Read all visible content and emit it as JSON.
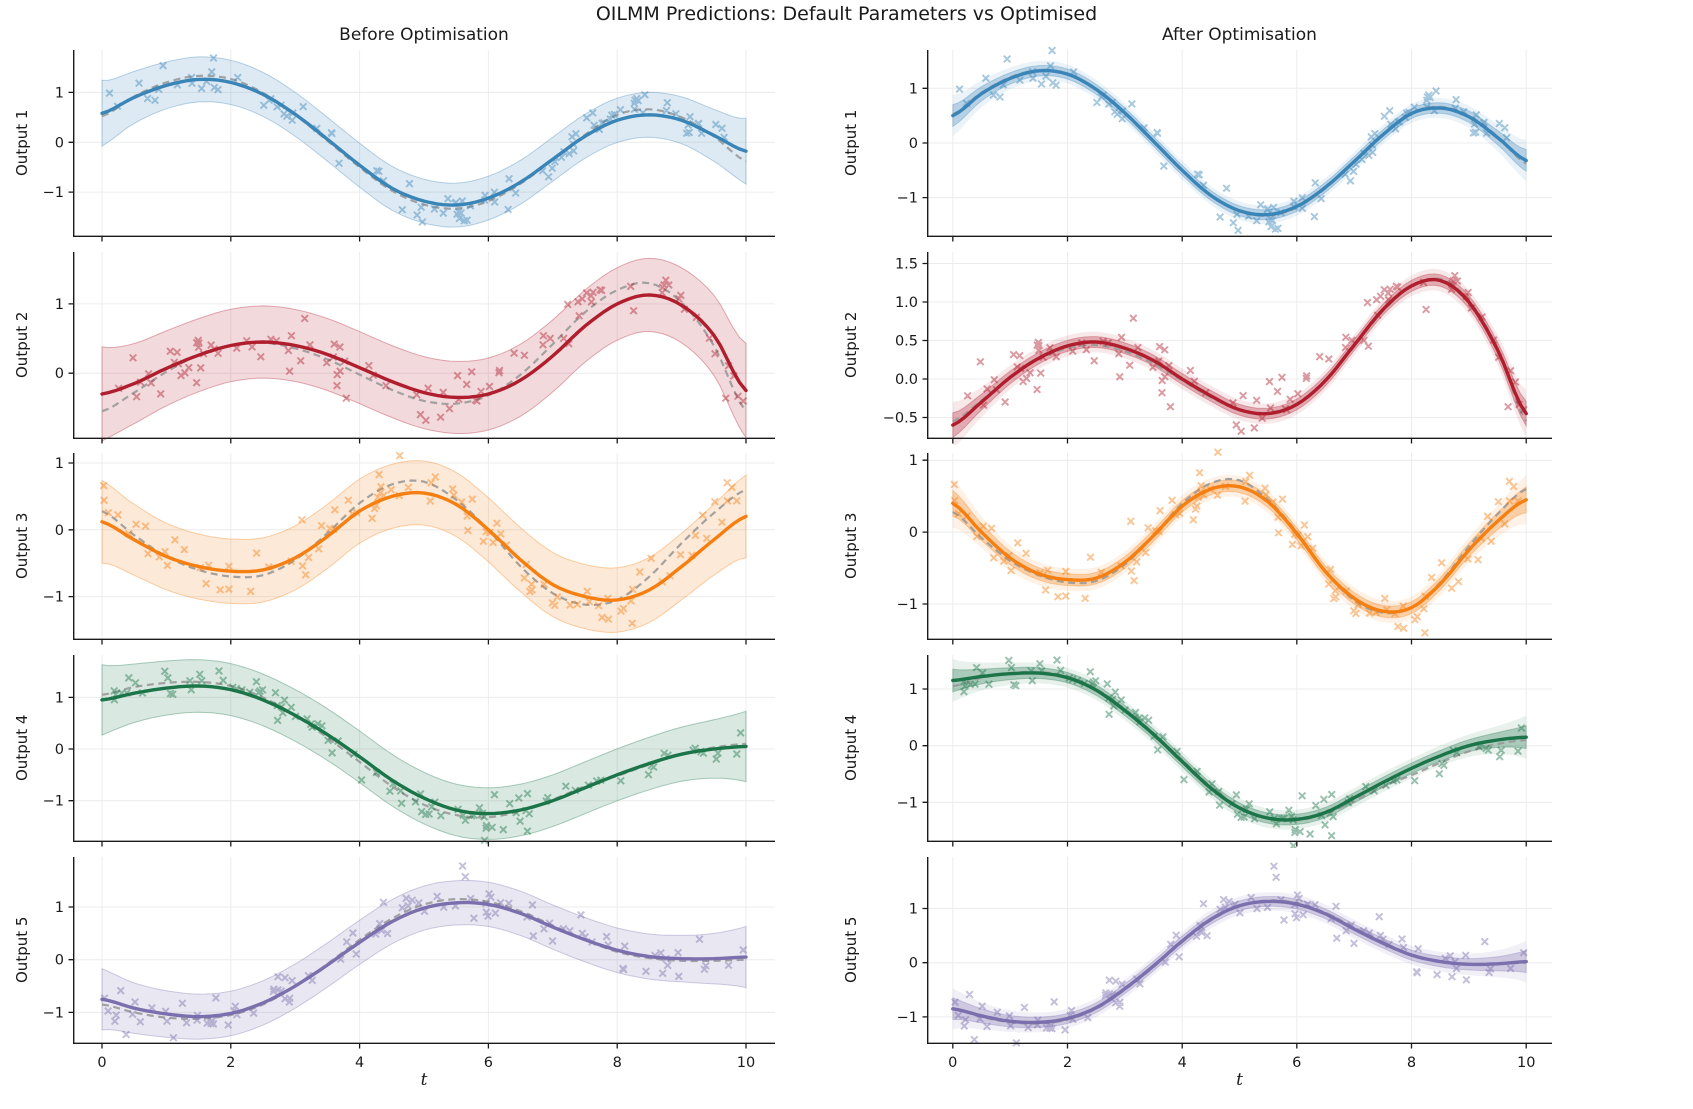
{
  "figure": {
    "title": "OILMM Predictions: Default Parameters vs Optimised",
    "col_titles": [
      "Before Optimisation",
      "After Optimisation"
    ],
    "xlabel": "t"
  },
  "chart_data": {
    "type": "line",
    "title": "OILMM Predictions: Default Parameters vs Optimised",
    "column_titles": [
      "Before Optimisation",
      "After Optimisation"
    ],
    "xlabel": "t",
    "x_ticks": [
      0,
      2,
      4,
      6,
      8,
      10
    ],
    "xlim": [
      -0.45,
      10.45
    ],
    "grid": true,
    "grid_color": "#ececec",
    "spine_color": "#1a1a1a",
    "truth_color": "#999999",
    "truth_style": "dashed",
    "marker": "x",
    "t": [
      0,
      0.5,
      1,
      1.5,
      2,
      2.5,
      3,
      3.5,
      4,
      4.5,
      5,
      5.5,
      6,
      6.5,
      7,
      7.5,
      8,
      8.5,
      9,
      9.5,
      10
    ],
    "rows": [
      {
        "label": "Output 1",
        "color": "#3a85b8",
        "truth": [
          0.52,
          0.92,
          1.2,
          1.33,
          1.27,
          0.99,
          0.55,
          0.03,
          -0.5,
          -0.97,
          -1.25,
          -1.33,
          -1.18,
          -0.83,
          -0.35,
          0.15,
          0.55,
          0.66,
          0.5,
          0.12,
          -0.38
        ],
        "scatter": {
          "seed": 7,
          "n": 100,
          "noise_sd": 0.17
        },
        "extra_points": [],
        "before": {
          "mean": [
            0.58,
            0.9,
            1.14,
            1.26,
            1.2,
            0.96,
            0.56,
            0.06,
            -0.46,
            -0.92,
            -1.18,
            -1.26,
            -1.12,
            -0.8,
            -0.34,
            0.12,
            0.44,
            0.55,
            0.44,
            0.14,
            -0.18
          ],
          "band_mid": 0.44,
          "band_edge": 0.66,
          "ylim": [
            -1.9,
            1.85
          ],
          "yticks": [
            -1,
            0,
            1
          ],
          "ytick_labels": [
            "−1",
            "0",
            "1"
          ]
        },
        "after": {
          "mean": [
            0.5,
            0.9,
            1.18,
            1.32,
            1.26,
            0.98,
            0.55,
            0.03,
            -0.5,
            -0.96,
            -1.24,
            -1.31,
            -1.16,
            -0.81,
            -0.34,
            0.15,
            0.54,
            0.64,
            0.48,
            0.1,
            -0.32
          ],
          "band_mid": 0.09,
          "band_edge": 0.2,
          "ylim": [
            -1.72,
            1.7
          ],
          "yticks": [
            -1,
            0,
            1
          ],
          "ytick_labels": [
            "−1",
            "0",
            "1"
          ]
        }
      },
      {
        "label": "Output 2",
        "color": "#b01e2e",
        "truth": [
          -0.55,
          -0.28,
          0.02,
          0.26,
          0.4,
          0.44,
          0.36,
          0.2,
          -0.02,
          -0.24,
          -0.4,
          -0.44,
          -0.32,
          -0.02,
          0.42,
          0.88,
          1.2,
          1.3,
          1.02,
          0.4,
          -0.55
        ],
        "scatter": {
          "seed": 13,
          "n": 100,
          "noise_sd": 0.2
        },
        "extra_points": [],
        "before": {
          "mean": [
            -0.3,
            -0.15,
            0.07,
            0.26,
            0.4,
            0.45,
            0.4,
            0.27,
            0.08,
            -0.12,
            -0.28,
            -0.35,
            -0.3,
            -0.1,
            0.25,
            0.68,
            1.0,
            1.13,
            0.98,
            0.55,
            -0.25
          ],
          "band_mid": 0.52,
          "band_edge": 0.68,
          "ylim": [
            -0.95,
            1.75
          ],
          "yticks": [
            0,
            1
          ],
          "ytick_labels": [
            "0",
            "1"
          ]
        },
        "after": {
          "mean": [
            -0.6,
            -0.3,
            0.02,
            0.27,
            0.43,
            0.48,
            0.4,
            0.24,
            0.0,
            -0.22,
            -0.4,
            -0.45,
            -0.33,
            -0.02,
            0.44,
            0.9,
            1.21,
            1.28,
            1.0,
            0.38,
            -0.45
          ],
          "band_mid": 0.07,
          "band_edge": 0.16,
          "ylim": [
            -0.78,
            1.65
          ],
          "yticks": [
            -0.5,
            0,
            0.5,
            1,
            1.5
          ],
          "ytick_labels": [
            "−0.5",
            "0.0",
            "0.5",
            "1.0",
            "1.5"
          ]
        }
      },
      {
        "label": "Output 3",
        "color": "#f57f11",
        "truth": [
          0.28,
          -0.08,
          -0.4,
          -0.6,
          -0.7,
          -0.68,
          -0.45,
          -0.05,
          0.4,
          0.68,
          0.72,
          0.45,
          0.0,
          -0.55,
          -0.95,
          -1.12,
          -1.05,
          -0.7,
          -0.2,
          0.25,
          0.6
        ],
        "scatter": {
          "seed": 21,
          "n": 100,
          "noise_sd": 0.2
        },
        "extra_points": [],
        "before": {
          "mean": [
            0.12,
            -0.15,
            -0.4,
            -0.55,
            -0.62,
            -0.6,
            -0.42,
            -0.1,
            0.28,
            0.5,
            0.55,
            0.38,
            0.0,
            -0.45,
            -0.82,
            -1.0,
            -1.05,
            -0.9,
            -0.55,
            -0.15,
            0.2
          ],
          "band_mid": 0.48,
          "band_edge": 0.62,
          "ylim": [
            -1.65,
            1.15
          ],
          "yticks": [
            -1,
            0,
            1
          ],
          "ytick_labels": [
            "−1",
            "0",
            "1"
          ]
        },
        "after": {
          "mean": [
            0.4,
            0.0,
            -0.36,
            -0.58,
            -0.66,
            -0.64,
            -0.42,
            -0.05,
            0.36,
            0.6,
            0.63,
            0.42,
            -0.02,
            -0.55,
            -0.92,
            -1.1,
            -1.05,
            -0.72,
            -0.25,
            0.15,
            0.45
          ],
          "band_mid": 0.08,
          "band_edge": 0.18,
          "ylim": [
            -1.5,
            1.1
          ],
          "yticks": [
            -1,
            0,
            1
          ],
          "ytick_labels": [
            "−1",
            "0",
            "1"
          ]
        }
      },
      {
        "label": "Output 4",
        "color": "#1b7549",
        "truth": [
          1.05,
          1.2,
          1.28,
          1.3,
          1.22,
          1.0,
          0.65,
          0.22,
          -0.25,
          -0.72,
          -1.08,
          -1.28,
          -1.32,
          -1.2,
          -0.98,
          -0.72,
          -0.52,
          -0.3,
          -0.1,
          0.03,
          0.1
        ],
        "scatter": {
          "seed": 5,
          "n": 100,
          "noise_sd": 0.15
        },
        "extra_points": [],
        "before": {
          "mean": [
            0.95,
            1.08,
            1.18,
            1.22,
            1.15,
            0.95,
            0.65,
            0.28,
            -0.15,
            -0.6,
            -0.95,
            -1.18,
            -1.25,
            -1.18,
            -1.0,
            -0.75,
            -0.5,
            -0.28,
            -0.1,
            0.0,
            0.05
          ],
          "band_mid": 0.5,
          "band_edge": 0.68,
          "ylim": [
            -1.8,
            1.82
          ],
          "yticks": [
            -1,
            0,
            1
          ],
          "ytick_labels": [
            "−1",
            "0",
            "1"
          ]
        },
        "after": {
          "mean": [
            1.15,
            1.22,
            1.27,
            1.28,
            1.2,
            0.98,
            0.62,
            0.2,
            -0.28,
            -0.75,
            -1.1,
            -1.28,
            -1.3,
            -1.18,
            -0.92,
            -0.65,
            -0.4,
            -0.18,
            0.0,
            0.1,
            0.15
          ],
          "band_mid": 0.09,
          "band_edge": 0.2,
          "ylim": [
            -1.7,
            1.6
          ],
          "yticks": [
            -1,
            0,
            1
          ],
          "ytick_labels": [
            "−1",
            "0",
            "1"
          ]
        }
      },
      {
        "label": "Output 5",
        "color": "#7b6fae",
        "truth": [
          -0.85,
          -1.0,
          -1.1,
          -1.12,
          -1.05,
          -0.85,
          -0.5,
          -0.08,
          0.38,
          0.78,
          1.05,
          1.15,
          1.1,
          0.92,
          0.65,
          0.38,
          0.15,
          0.03,
          -0.02,
          -0.02,
          0.0
        ],
        "scatter": {
          "seed": 42,
          "n": 100,
          "noise_sd": 0.2
        },
        "extra_points": [
          [
            5.6,
            1.78
          ]
        ],
        "before": {
          "mean": [
            -0.75,
            -0.92,
            -1.03,
            -1.08,
            -1.02,
            -0.82,
            -0.5,
            -0.1,
            0.33,
            0.72,
            0.98,
            1.08,
            1.05,
            0.88,
            0.62,
            0.38,
            0.18,
            0.06,
            0.02,
            0.02,
            0.05
          ],
          "band_mid": 0.42,
          "band_edge": 0.58,
          "ylim": [
            -1.6,
            1.95
          ],
          "yticks": [
            -1,
            0,
            1
          ],
          "ytick_labels": [
            "−1",
            "0",
            "1"
          ]
        },
        "after": {
          "mean": [
            -0.85,
            -0.98,
            -1.08,
            -1.1,
            -1.03,
            -0.83,
            -0.48,
            -0.06,
            0.4,
            0.8,
            1.05,
            1.13,
            1.08,
            0.9,
            0.62,
            0.36,
            0.14,
            0.02,
            -0.03,
            -0.02,
            0.02
          ],
          "band_mid": 0.09,
          "band_edge": 0.2,
          "ylim": [
            -1.5,
            1.95
          ],
          "yticks": [
            -1,
            0,
            1
          ],
          "ytick_labels": [
            "−1",
            "0",
            "1"
          ]
        }
      }
    ]
  }
}
